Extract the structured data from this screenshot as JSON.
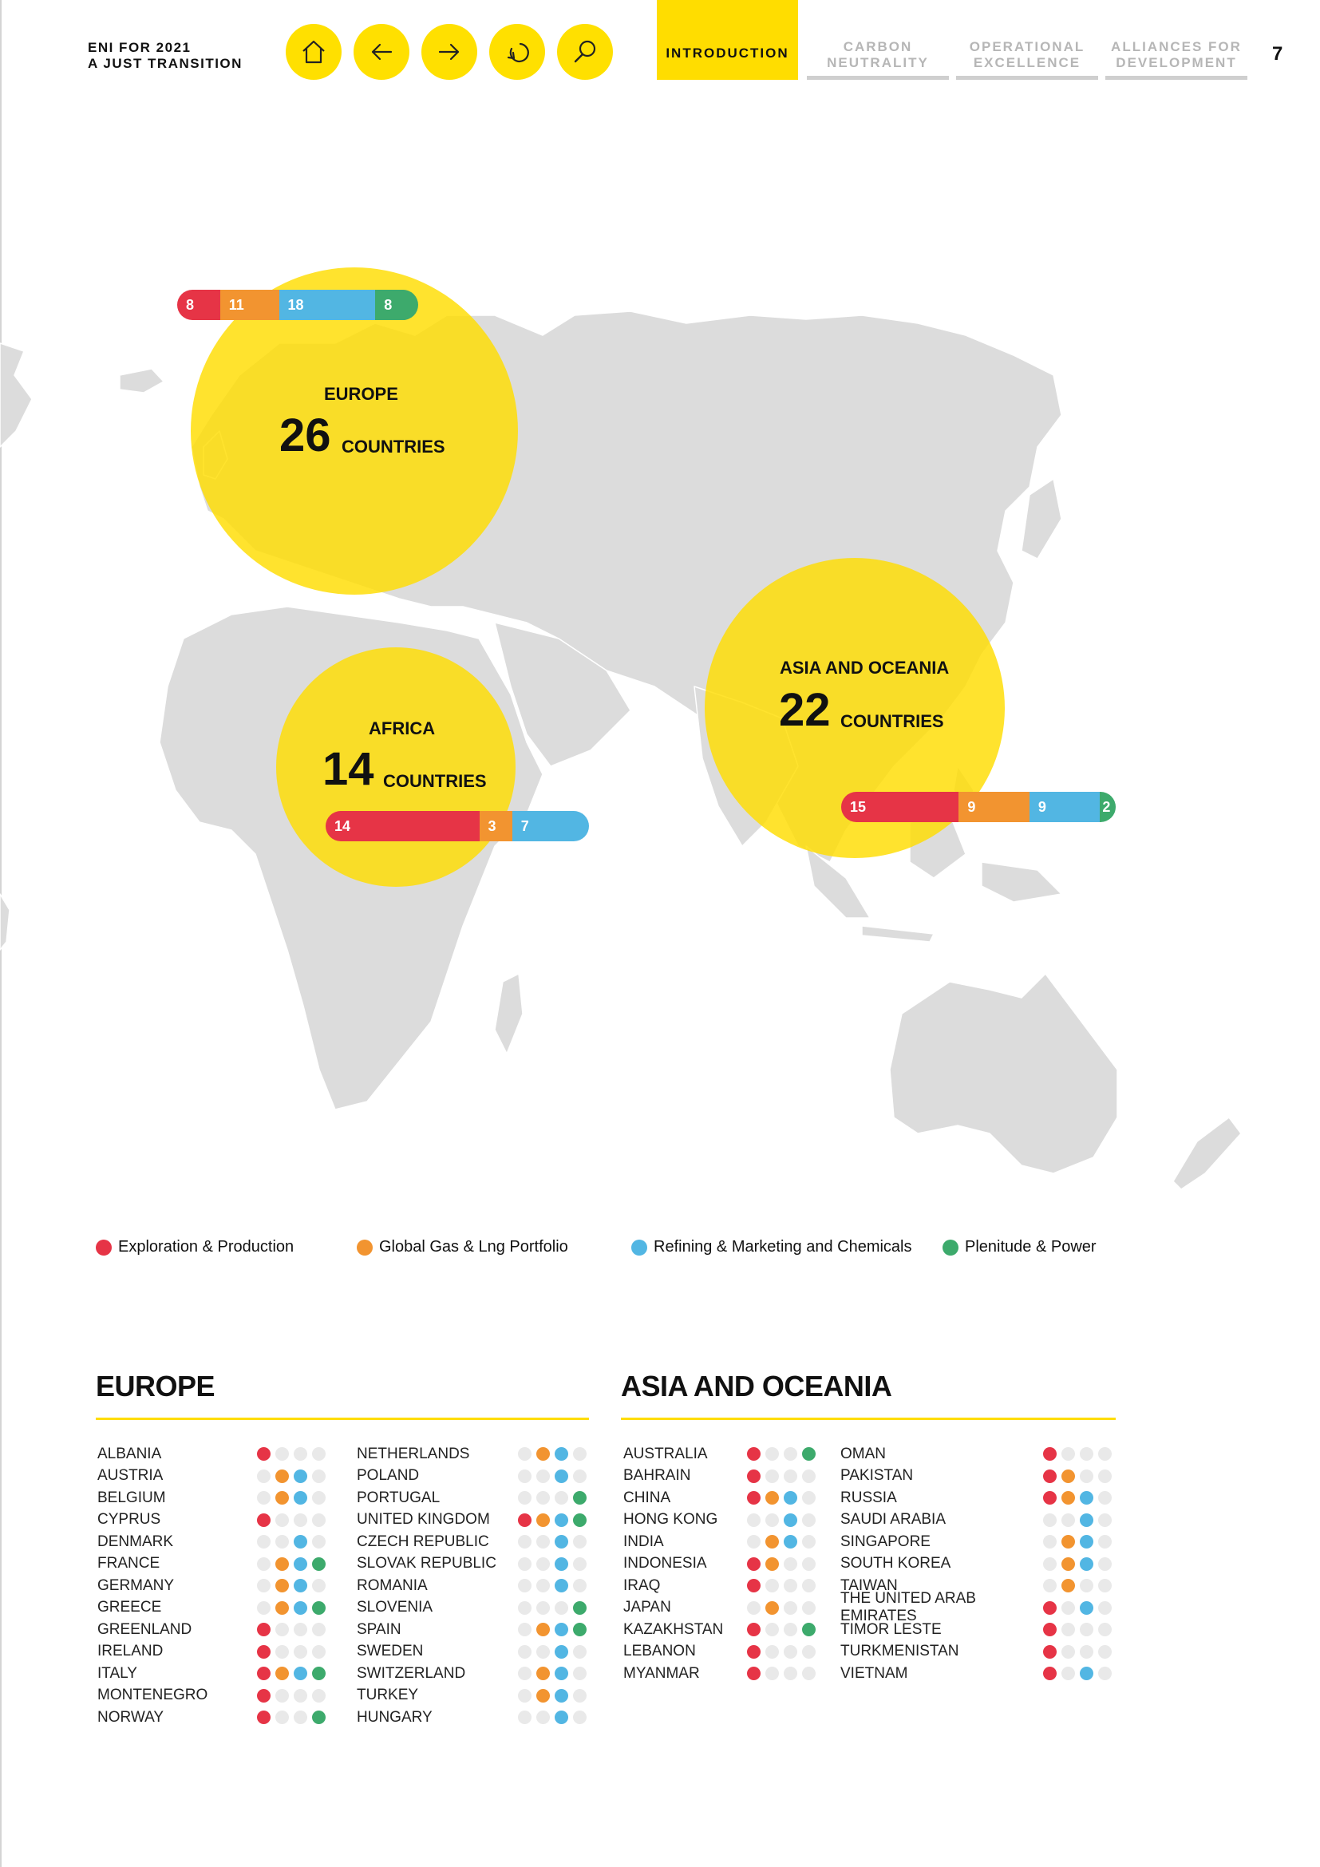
{
  "header": {
    "doc_title_line1": "ENI FOR 2021",
    "doc_title_line2": "A JUST TRANSITION",
    "nav_buttons": [
      "home-icon",
      "arrow-left-icon",
      "arrow-right-icon",
      "back-icon",
      "search-icon"
    ],
    "tabs": [
      {
        "line1": "INTRODUCTION",
        "line2": "",
        "active": true
      },
      {
        "line1": "CARBON",
        "line2": "NEUTRALITY",
        "active": false
      },
      {
        "line1": "OPERATIONAL",
        "line2": "EXCELLENCE",
        "active": false
      },
      {
        "line1": "ALLIANCES FOR",
        "line2": "DEVELOPMENT",
        "active": false
      }
    ],
    "page_number": "7"
  },
  "colors": {
    "exploration": "#e63446",
    "gas": "#f29430",
    "refining": "#52b6e3",
    "plenitude": "#3daa6c",
    "accent_yellow": "#ffdd00",
    "empty_dot": "#e9e9e9",
    "land": "#dcdcdc"
  },
  "map": {
    "regions": [
      {
        "key": "europe",
        "label": "EUROPE",
        "count": "26",
        "unit": "COUNTRIES",
        "segments": [
          {
            "sector": "exploration",
            "value": 8
          },
          {
            "sector": "gas",
            "value": 11
          },
          {
            "sector": "refining",
            "value": 18
          },
          {
            "sector": "plenitude",
            "value": 8
          }
        ]
      },
      {
        "key": "africa",
        "label": "AFRICA",
        "count": "14",
        "unit": "COUNTRIES",
        "segments": [
          {
            "sector": "exploration",
            "value": 14
          },
          {
            "sector": "gas",
            "value": 3
          },
          {
            "sector": "refining",
            "value": 7
          }
        ]
      },
      {
        "key": "asia",
        "label": "ASIA AND OCEANIA",
        "count": "22",
        "unit": "COUNTRIES",
        "segments": [
          {
            "sector": "exploration",
            "value": 15
          },
          {
            "sector": "gas",
            "value": 9
          },
          {
            "sector": "refining",
            "value": 9
          },
          {
            "sector": "plenitude",
            "value": 2
          }
        ]
      }
    ]
  },
  "legend": [
    {
      "sector": "exploration",
      "label": "Exploration & Production"
    },
    {
      "sector": "gas",
      "label": "Global Gas & Lng Portfolio"
    },
    {
      "sector": "refining",
      "label": "Refining & Marketing and Chemicals"
    },
    {
      "sector": "plenitude",
      "label": "Plenitude & Power"
    }
  ],
  "europe": {
    "title": "EUROPE",
    "columns": [
      [
        {
          "name": "ALBANIA",
          "f": [
            1,
            0,
            0,
            0
          ]
        },
        {
          "name": "AUSTRIA",
          "f": [
            0,
            1,
            1,
            0
          ]
        },
        {
          "name": "BELGIUM",
          "f": [
            0,
            1,
            1,
            0
          ]
        },
        {
          "name": "CYPRUS",
          "f": [
            1,
            0,
            0,
            0
          ]
        },
        {
          "name": "DENMARK",
          "f": [
            0,
            0,
            1,
            0
          ]
        },
        {
          "name": "FRANCE",
          "f": [
            0,
            1,
            1,
            1
          ]
        },
        {
          "name": "GERMANY",
          "f": [
            0,
            1,
            1,
            0
          ]
        },
        {
          "name": "GREECE",
          "f": [
            0,
            1,
            1,
            1
          ]
        },
        {
          "name": "GREENLAND",
          "f": [
            1,
            0,
            0,
            0
          ]
        },
        {
          "name": "IRELAND",
          "f": [
            1,
            0,
            0,
            0
          ]
        },
        {
          "name": "ITALY",
          "f": [
            1,
            1,
            1,
            1
          ]
        },
        {
          "name": "MONTENEGRO",
          "f": [
            1,
            0,
            0,
            0
          ]
        },
        {
          "name": "NORWAY",
          "f": [
            1,
            0,
            0,
            1
          ]
        }
      ],
      [
        {
          "name": "NETHERLANDS",
          "f": [
            0,
            1,
            1,
            0
          ]
        },
        {
          "name": "POLAND",
          "f": [
            0,
            0,
            1,
            0
          ]
        },
        {
          "name": "PORTUGAL",
          "f": [
            0,
            0,
            0,
            1
          ]
        },
        {
          "name": "UNITED KINGDOM",
          "f": [
            1,
            1,
            1,
            1
          ]
        },
        {
          "name": "CZECH REPUBLIC",
          "f": [
            0,
            0,
            1,
            0
          ]
        },
        {
          "name": "SLOVAK REPUBLIC",
          "f": [
            0,
            0,
            1,
            0
          ]
        },
        {
          "name": "ROMANIA",
          "f": [
            0,
            0,
            1,
            0
          ]
        },
        {
          "name": "SLOVENIA",
          "f": [
            0,
            0,
            0,
            1
          ]
        },
        {
          "name": "SPAIN",
          "f": [
            0,
            1,
            1,
            1
          ]
        },
        {
          "name": "SWEDEN",
          "f": [
            0,
            0,
            1,
            0
          ]
        },
        {
          "name": "SWITZERLAND",
          "f": [
            0,
            1,
            1,
            0
          ]
        },
        {
          "name": "TURKEY",
          "f": [
            0,
            1,
            1,
            0
          ]
        },
        {
          "name": "HUNGARY",
          "f": [
            0,
            0,
            1,
            0
          ]
        }
      ]
    ]
  },
  "asia": {
    "title": "ASIA AND OCEANIA",
    "columns": [
      [
        {
          "name": "AUSTRALIA",
          "f": [
            1,
            0,
            0,
            1
          ]
        },
        {
          "name": "BAHRAIN",
          "f": [
            1,
            0,
            0,
            0
          ]
        },
        {
          "name": "CHINA",
          "f": [
            1,
            1,
            1,
            0
          ]
        },
        {
          "name": "HONG KONG",
          "f": [
            0,
            0,
            1,
            0
          ]
        },
        {
          "name": "INDIA",
          "f": [
            0,
            1,
            1,
            0
          ]
        },
        {
          "name": "INDONESIA",
          "f": [
            1,
            1,
            0,
            0
          ]
        },
        {
          "name": "IRAQ",
          "f": [
            1,
            0,
            0,
            0
          ]
        },
        {
          "name": "JAPAN",
          "f": [
            0,
            1,
            0,
            0
          ]
        },
        {
          "name": "KAZAKHSTAN",
          "f": [
            1,
            0,
            0,
            1
          ]
        },
        {
          "name": "LEBANON",
          "f": [
            1,
            0,
            0,
            0
          ]
        },
        {
          "name": "MYANMAR",
          "f": [
            1,
            0,
            0,
            0
          ]
        }
      ],
      [
        {
          "name": "OMAN",
          "f": [
            1,
            0,
            0,
            0
          ]
        },
        {
          "name": "PAKISTAN",
          "f": [
            1,
            1,
            0,
            0
          ]
        },
        {
          "name": "RUSSIA",
          "f": [
            1,
            1,
            1,
            0
          ]
        },
        {
          "name": "SAUDI ARABIA",
          "f": [
            0,
            0,
            1,
            0
          ]
        },
        {
          "name": "SINGAPORE",
          "f": [
            0,
            1,
            1,
            0
          ]
        },
        {
          "name": "SOUTH KOREA",
          "f": [
            0,
            1,
            1,
            0
          ]
        },
        {
          "name": "TAIWAN",
          "f": [
            0,
            1,
            0,
            0
          ]
        },
        {
          "name": "THE UNITED ARAB EMIRATES",
          "f": [
            1,
            0,
            1,
            0
          ]
        },
        {
          "name": "TIMOR LESTE",
          "f": [
            1,
            0,
            0,
            0
          ]
        },
        {
          "name": "TURKMENISTAN",
          "f": [
            1,
            0,
            0,
            0
          ]
        },
        {
          "name": "VIETNAM",
          "f": [
            1,
            0,
            1,
            0
          ]
        }
      ]
    ]
  }
}
